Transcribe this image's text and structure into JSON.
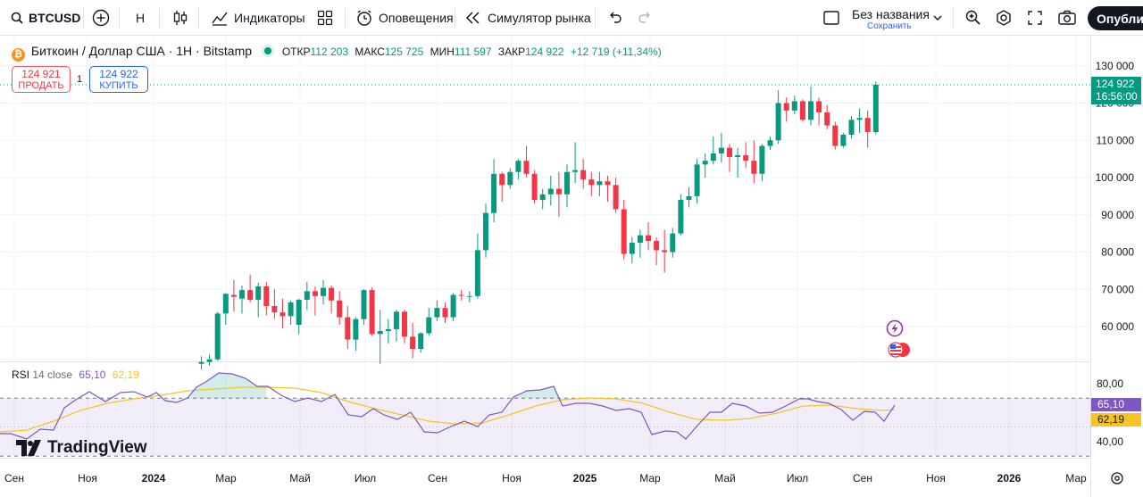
{
  "toolbar": {
    "symbol": "BTCUSD",
    "interval": "H",
    "indicators": "Индикаторы",
    "alerts": "Оповещения",
    "replay": "Симулятор рынка",
    "layout_name": "Без названия",
    "layout_save": "Сохранить",
    "publish": "Опублико"
  },
  "legend": {
    "title": "Биткоин / Доллар США · 1Н · Bitstamp",
    "open_label": "ОТКР",
    "open": "112 203",
    "high_label": "МАКС",
    "high": "125 725",
    "low_label": "МИН",
    "low": "111 597",
    "close_label": "ЗАКР",
    "close": "124 922",
    "change": "+12 719 (+11,34%)"
  },
  "trade": {
    "sell_price": "124 921",
    "sell_label": "ПРОДАТЬ",
    "quantity": "1",
    "buy_price": "124 922",
    "buy_label": "КУПИТЬ"
  },
  "price_tag": {
    "price": "124 922",
    "countdown": "16:56:00"
  },
  "rsi": {
    "label": "RSI",
    "params": "14 close",
    "value": "65,10",
    "ma_value": "62,19"
  },
  "branding": {
    "logo_text": "TradingView"
  },
  "colors": {
    "up": "#089981",
    "down": "#f23645",
    "rsi_line": "#7e57c2",
    "rsi_ma": "#f7c325",
    "rsi_band": "#7e57c2"
  },
  "chart_data": {
    "type": "candlestick",
    "price_axis": {
      "ticks": [
        130000,
        120000,
        110000,
        100000,
        90000,
        80000,
        70000,
        60000
      ],
      "tick_labels": [
        "130 000",
        "120 000",
        "110 000",
        "100 000",
        "90 000",
        "80 000",
        "70 000",
        "60 000"
      ]
    },
    "time_axis": {
      "labels": [
        "Сен",
        "Ноя",
        "2024",
        "Мар",
        "Май",
        "Июл",
        "Сен",
        "Ноя",
        "2025",
        "Мар",
        "Май",
        "Июл",
        "Сен",
        "Ноя",
        "2026",
        "Мар"
      ]
    },
    "candles_ohlc": [
      [
        50000,
        52000,
        48500,
        50500
      ],
      [
        50500,
        52500,
        49500,
        51200
      ],
      [
        51200,
        64000,
        50800,
        63500
      ],
      [
        63500,
        69000,
        60500,
        68800
      ],
      [
        68500,
        72500,
        64000,
        68000
      ],
      [
        67500,
        71000,
        63500,
        69800
      ],
      [
        69800,
        74000,
        66500,
        67200
      ],
      [
        67200,
        71800,
        62500,
        70800
      ],
      [
        70800,
        72000,
        63000,
        65500
      ],
      [
        65500,
        70000,
        62000,
        63800
      ],
      [
        63800,
        67500,
        59500,
        62800
      ],
      [
        62800,
        67000,
        60500,
        66500
      ],
      [
        60500,
        67500,
        58000,
        67200
      ],
      [
        67200,
        72000,
        64500,
        69500
      ],
      [
        69500,
        70800,
        63000,
        68200
      ],
      [
        68200,
        72500,
        66000,
        70400
      ],
      [
        70400,
        71000,
        63500,
        67000
      ],
      [
        67000,
        69500,
        60500,
        62500
      ],
      [
        62500,
        65500,
        54000,
        56500
      ],
      [
        56500,
        62500,
        53500,
        62000
      ],
      [
        62000,
        70000,
        60500,
        69800
      ],
      [
        69800,
        70500,
        57500,
        58000
      ],
      [
        58000,
        64500,
        50000,
        58800
      ],
      [
        58800,
        62000,
        55500,
        59300
      ],
      [
        59300,
        64500,
        56000,
        64000
      ],
      [
        64000,
        64500,
        55500,
        57300
      ],
      [
        57300,
        61000,
        51500,
        54000
      ],
      [
        54000,
        58500,
        53000,
        58200
      ],
      [
        58200,
        65000,
        57500,
        62500
      ],
      [
        62500,
        67000,
        61500,
        65000
      ],
      [
        65000,
        66500,
        61000,
        62500
      ],
      [
        62500,
        69000,
        61500,
        68500
      ],
      [
        68500,
        69800,
        67000,
        68400
      ],
      [
        68000,
        69500,
        66500,
        68200
      ],
      [
        68200,
        85000,
        67500,
        80500
      ],
      [
        80500,
        93000,
        78500,
        90500
      ],
      [
        90500,
        105000,
        88000,
        101000
      ],
      [
        101000,
        101500,
        93500,
        98000
      ],
      [
        98000,
        102500,
        97000,
        101500
      ],
      [
        101500,
        105000,
        99500,
        104500
      ],
      [
        104500,
        108500,
        100000,
        101000
      ],
      [
        101000,
        102000,
        93000,
        94000
      ],
      [
        94000,
        97000,
        91500,
        95500
      ],
      [
        95500,
        100500,
        92500,
        97000
      ],
      [
        97000,
        101500,
        89500,
        95500
      ],
      [
        95500,
        103500,
        92000,
        101500
      ],
      [
        101500,
        109500,
        98500,
        102000
      ],
      [
        102000,
        105000,
        97000,
        99500
      ],
      [
        99500,
        101500,
        95000,
        98000
      ],
      [
        98000,
        101500,
        95000,
        99000
      ],
      [
        99000,
        100500,
        93500,
        98000
      ],
      [
        98000,
        100000,
        90500,
        91500
      ],
      [
        91500,
        94000,
        78000,
        79500
      ],
      [
        79500,
        84000,
        77000,
        82500
      ],
      [
        82500,
        86000,
        78500,
        84500
      ],
      [
        84500,
        88000,
        80500,
        83000
      ],
      [
        83000,
        84000,
        76500,
        80500
      ],
      [
        80500,
        86000,
        74500,
        80000
      ],
      [
        80000,
        86500,
        78500,
        85000
      ],
      [
        85000,
        95500,
        84500,
        94000
      ],
      [
        94000,
        97500,
        92000,
        95000
      ],
      [
        95000,
        105000,
        93000,
        103500
      ],
      [
        103500,
        106500,
        100000,
        104500
      ],
      [
        104500,
        111000,
        103500,
        106500
      ],
      [
        106500,
        112000,
        104000,
        108000
      ],
      [
        108000,
        109000,
        101500,
        105500
      ],
      [
        105500,
        108000,
        100000,
        106000
      ],
      [
        106000,
        109500,
        102500,
        104500
      ],
      [
        104500,
        110000,
        98500,
        101000
      ],
      [
        101000,
        109000,
        99000,
        108500
      ],
      [
        108500,
        111000,
        107500,
        110000
      ],
      [
        110000,
        123500,
        109000,
        120000
      ],
      [
        120000,
        121500,
        115000,
        118000
      ],
      [
        118000,
        122000,
        117000,
        120500
      ],
      [
        120500,
        121000,
        115000,
        115500
      ],
      [
        115500,
        124500,
        114000,
        120500
      ],
      [
        120500,
        121500,
        114000,
        117500
      ],
      [
        117500,
        119500,
        113000,
        114000
      ],
      [
        114000,
        115000,
        107500,
        108500
      ],
      [
        108500,
        112000,
        108000,
        111500
      ],
      [
        111500,
        116500,
        110500,
        115500
      ],
      [
        115500,
        118500,
        112000,
        116000
      ],
      [
        116000,
        118000,
        108000,
        112200
      ],
      [
        112203,
        125725,
        111597,
        124922
      ]
    ],
    "rsi": {
      "range": [
        30,
        85
      ],
      "ticks": [
        80,
        40
      ],
      "upper_band": 70,
      "lower_band": 30,
      "value": 65.1,
      "ma": 62.19
    }
  }
}
